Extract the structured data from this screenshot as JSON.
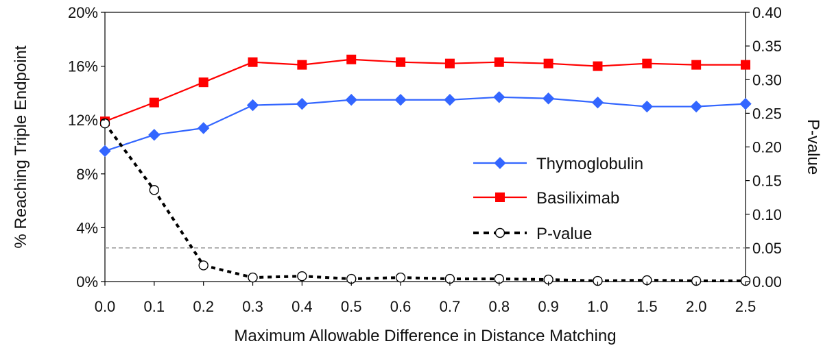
{
  "chart_data": {
    "type": "line",
    "categories": [
      "0.0",
      "0.1",
      "0.2",
      "0.3",
      "0.4",
      "0.5",
      "0.6",
      "0.7",
      "0.8",
      "0.9",
      "1.0",
      "1.5",
      "2.0",
      "2.5"
    ],
    "series": [
      {
        "name": "Thymoglobulin",
        "axis": "left",
        "color": "#3366ff",
        "marker": "diamond",
        "line_style": "solid",
        "values": [
          9.7,
          10.9,
          11.4,
          13.1,
          13.2,
          13.5,
          13.5,
          13.5,
          13.7,
          13.6,
          13.3,
          13.0,
          13.0,
          13.2
        ]
      },
      {
        "name": "Basiliximab",
        "axis": "left",
        "color": "#ff0000",
        "marker": "square",
        "line_style": "solid",
        "values": [
          11.9,
          13.3,
          14.8,
          16.3,
          16.1,
          16.5,
          16.3,
          16.2,
          16.3,
          16.2,
          16.0,
          16.2,
          16.1,
          16.1
        ]
      },
      {
        "name": "P-value",
        "axis": "right",
        "color": "#000000",
        "marker": "open-circle",
        "line_style": "dotted",
        "values": [
          0.235,
          0.136,
          0.024,
          0.006,
          0.008,
          0.004,
          0.006,
          0.004,
          0.004,
          0.003,
          0.001,
          0.002,
          0.001,
          0.001
        ]
      }
    ],
    "reference_line": {
      "axis": "right",
      "value": 0.05,
      "color": "#999999",
      "style": "dashed"
    },
    "xlabel": "Maximum Allowable Difference in Distance Matching",
    "ylabel": "% Reaching Triple Endpoint",
    "y2label": "P-value",
    "ylim": [
      0,
      20
    ],
    "y2lim": [
      0,
      0.4
    ],
    "yticks": [
      "0%",
      "4%",
      "8%",
      "12%",
      "16%",
      "20%"
    ],
    "y2ticks": [
      "0.00",
      "0.05",
      "0.10",
      "0.15",
      "0.20",
      "0.25",
      "0.30",
      "0.35",
      "0.40"
    ],
    "grid": false,
    "legend_position": "center-right"
  }
}
